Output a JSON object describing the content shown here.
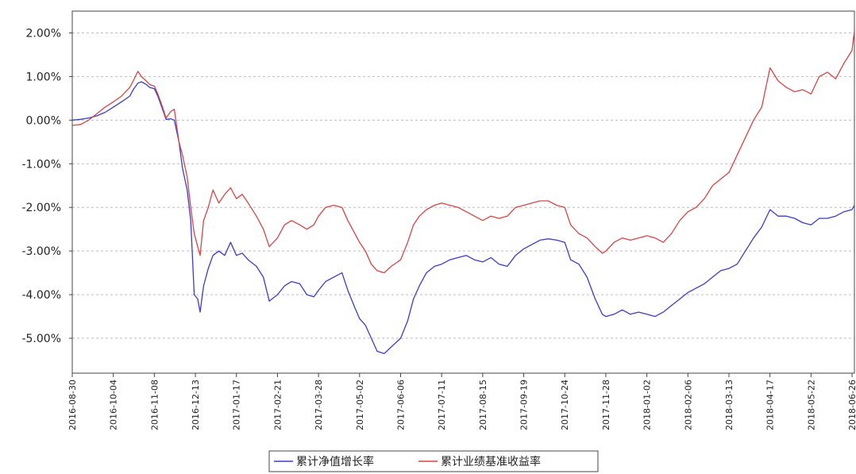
{
  "chart_data": {
    "type": "line",
    "title": "",
    "xlabel": "",
    "ylabel": "",
    "ylim": [
      -5.8,
      2.5
    ],
    "yticks": [
      {
        "value": 2,
        "label": "2.00%"
      },
      {
        "value": 1,
        "label": "1.00%"
      },
      {
        "value": 0,
        "label": "0.00%"
      },
      {
        "value": -1,
        "label": "-1.00%"
      },
      {
        "value": -2,
        "label": "-2.00%"
      },
      {
        "value": -3,
        "label": "-3.00%"
      },
      {
        "value": -4,
        "label": "-4.00%"
      },
      {
        "value": -5,
        "label": "-5.00%"
      }
    ],
    "x_range": [
      "2016-08-30",
      "2018-06-28"
    ],
    "xticks": [
      "2016-08-30",
      "2016-10-04",
      "2016-11-08",
      "2016-12-13",
      "2017-01-17",
      "2017-02-21",
      "2017-03-28",
      "2017-05-02",
      "2017-06-06",
      "2017-07-11",
      "2017-08-15",
      "2017-09-19",
      "2017-10-24",
      "2017-11-28",
      "2018-01-02",
      "2018-02-06",
      "2018-03-13",
      "2018-04-17",
      "2018-05-22",
      "2018-06-26"
    ],
    "grid": true,
    "legend_position": "bottom-center",
    "series": [
      {
        "name": "累计净值增长率",
        "color": "#3b3bcc",
        "points": [
          [
            "2016-08-30",
            0.0
          ],
          [
            "2016-09-06",
            0.02
          ],
          [
            "2016-09-13",
            0.05
          ],
          [
            "2016-09-20",
            0.1
          ],
          [
            "2016-09-27",
            0.18
          ],
          [
            "2016-10-04",
            0.3
          ],
          [
            "2016-10-11",
            0.42
          ],
          [
            "2016-10-18",
            0.55
          ],
          [
            "2016-10-21",
            0.7
          ],
          [
            "2016-10-25",
            0.85
          ],
          [
            "2016-10-28",
            0.88
          ],
          [
            "2016-11-01",
            0.82
          ],
          [
            "2016-11-04",
            0.75
          ],
          [
            "2016-11-08",
            0.72
          ],
          [
            "2016-11-11",
            0.55
          ],
          [
            "2016-11-15",
            0.25
          ],
          [
            "2016-11-18",
            0.02
          ],
          [
            "2016-11-22",
            0.03
          ],
          [
            "2016-11-25",
            0.0
          ],
          [
            "2016-11-29",
            -0.5
          ],
          [
            "2016-12-02",
            -1.1
          ],
          [
            "2016-12-06",
            -1.6
          ],
          [
            "2016-12-09",
            -2.3
          ],
          [
            "2016-12-12",
            -4.0
          ],
          [
            "2016-12-15",
            -4.1
          ],
          [
            "2016-12-17",
            -4.4
          ],
          [
            "2016-12-20",
            -3.8
          ],
          [
            "2016-12-24",
            -3.4
          ],
          [
            "2016-12-28",
            -3.1
          ],
          [
            "2017-01-02",
            -3.0
          ],
          [
            "2017-01-07",
            -3.1
          ],
          [
            "2017-01-12",
            -2.8
          ],
          [
            "2017-01-17",
            -3.1
          ],
          [
            "2017-01-22",
            -3.05
          ],
          [
            "2017-01-27",
            -3.2
          ],
          [
            "2017-02-03",
            -3.35
          ],
          [
            "2017-02-09",
            -3.6
          ],
          [
            "2017-02-14",
            -4.15
          ],
          [
            "2017-02-21",
            -4.0
          ],
          [
            "2017-02-27",
            -3.8
          ],
          [
            "2017-03-05",
            -3.7
          ],
          [
            "2017-03-12",
            -3.75
          ],
          [
            "2017-03-18",
            -4.0
          ],
          [
            "2017-03-24",
            -4.05
          ],
          [
            "2017-03-28",
            -3.9
          ],
          [
            "2017-04-03",
            -3.7
          ],
          [
            "2017-04-10",
            -3.6
          ],
          [
            "2017-04-17",
            -3.5
          ],
          [
            "2017-04-22",
            -3.9
          ],
          [
            "2017-04-28",
            -4.3
          ],
          [
            "2017-05-02",
            -4.55
          ],
          [
            "2017-05-07",
            -4.7
          ],
          [
            "2017-05-12",
            -5.0
          ],
          [
            "2017-05-17",
            -5.3
          ],
          [
            "2017-05-23",
            -5.35
          ],
          [
            "2017-05-29",
            -5.2
          ],
          [
            "2017-06-06",
            -5.0
          ],
          [
            "2017-06-12",
            -4.6
          ],
          [
            "2017-06-17",
            -4.1
          ],
          [
            "2017-06-22",
            -3.8
          ],
          [
            "2017-06-28",
            -3.5
          ],
          [
            "2017-07-05",
            -3.35
          ],
          [
            "2017-07-11",
            -3.3
          ],
          [
            "2017-07-18",
            -3.2
          ],
          [
            "2017-07-25",
            -3.15
          ],
          [
            "2017-08-01",
            -3.1
          ],
          [
            "2017-08-08",
            -3.2
          ],
          [
            "2017-08-15",
            -3.25
          ],
          [
            "2017-08-22",
            -3.15
          ],
          [
            "2017-08-29",
            -3.3
          ],
          [
            "2017-09-05",
            -3.35
          ],
          [
            "2017-09-12",
            -3.1
          ],
          [
            "2017-09-19",
            -2.95
          ],
          [
            "2017-09-26",
            -2.85
          ],
          [
            "2017-10-03",
            -2.75
          ],
          [
            "2017-10-10",
            -2.72
          ],
          [
            "2017-10-17",
            -2.75
          ],
          [
            "2017-10-24",
            -2.8
          ],
          [
            "2017-10-29",
            -3.2
          ],
          [
            "2017-11-05",
            -3.3
          ],
          [
            "2017-11-12",
            -3.6
          ],
          [
            "2017-11-19",
            -4.1
          ],
          [
            "2017-11-25",
            -4.45
          ],
          [
            "2017-11-28",
            -4.5
          ],
          [
            "2017-12-05",
            -4.45
          ],
          [
            "2017-12-12",
            -4.35
          ],
          [
            "2017-12-19",
            -4.45
          ],
          [
            "2017-12-26",
            -4.4
          ],
          [
            "2018-01-02",
            -4.45
          ],
          [
            "2018-01-09",
            -4.5
          ],
          [
            "2018-01-16",
            -4.4
          ],
          [
            "2018-01-23",
            -4.25
          ],
          [
            "2018-01-30",
            -4.1
          ],
          [
            "2018-02-06",
            -3.95
          ],
          [
            "2018-02-13",
            -3.85
          ],
          [
            "2018-02-20",
            -3.75
          ],
          [
            "2018-02-27",
            -3.6
          ],
          [
            "2018-03-06",
            -3.45
          ],
          [
            "2018-03-13",
            -3.4
          ],
          [
            "2018-03-20",
            -3.3
          ],
          [
            "2018-03-27",
            -3.0
          ],
          [
            "2018-04-03",
            -2.7
          ],
          [
            "2018-04-10",
            -2.45
          ],
          [
            "2018-04-17",
            -2.05
          ],
          [
            "2018-04-24",
            -2.2
          ],
          [
            "2018-05-01",
            -2.2
          ],
          [
            "2018-05-08",
            -2.25
          ],
          [
            "2018-05-15",
            -2.35
          ],
          [
            "2018-05-22",
            -2.4
          ],
          [
            "2018-05-29",
            -2.25
          ],
          [
            "2018-06-05",
            -2.25
          ],
          [
            "2018-06-12",
            -2.2
          ],
          [
            "2018-06-19",
            -2.1
          ],
          [
            "2018-06-26",
            -2.05
          ],
          [
            "2018-06-28",
            -1.95
          ]
        ]
      },
      {
        "name": "累计业绩基准收益率",
        "color": "#d94444",
        "points": [
          [
            "2016-08-30",
            -0.12
          ],
          [
            "2016-09-06",
            -0.1
          ],
          [
            "2016-09-13",
            0.0
          ],
          [
            "2016-09-20",
            0.15
          ],
          [
            "2016-09-27",
            0.3
          ],
          [
            "2016-10-04",
            0.42
          ],
          [
            "2016-10-11",
            0.55
          ],
          [
            "2016-10-18",
            0.75
          ],
          [
            "2016-10-21",
            0.9
          ],
          [
            "2016-10-25",
            1.12
          ],
          [
            "2016-10-28",
            1.0
          ],
          [
            "2016-11-01",
            0.9
          ],
          [
            "2016-11-04",
            0.82
          ],
          [
            "2016-11-08",
            0.78
          ],
          [
            "2016-11-11",
            0.6
          ],
          [
            "2016-11-15",
            0.3
          ],
          [
            "2016-11-18",
            0.05
          ],
          [
            "2016-11-22",
            0.2
          ],
          [
            "2016-11-25",
            0.25
          ],
          [
            "2016-11-29",
            -0.5
          ],
          [
            "2016-12-02",
            -0.8
          ],
          [
            "2016-12-06",
            -1.3
          ],
          [
            "2016-12-09",
            -2.0
          ],
          [
            "2016-12-12",
            -2.6
          ],
          [
            "2016-12-15",
            -2.9
          ],
          [
            "2016-12-17",
            -3.1
          ],
          [
            "2016-12-20",
            -2.3
          ],
          [
            "2016-12-24",
            -2.0
          ],
          [
            "2016-12-28",
            -1.6
          ],
          [
            "2017-01-02",
            -1.9
          ],
          [
            "2017-01-07",
            -1.7
          ],
          [
            "2017-01-12",
            -1.55
          ],
          [
            "2017-01-17",
            -1.8
          ],
          [
            "2017-01-22",
            -1.7
          ],
          [
            "2017-01-27",
            -1.9
          ],
          [
            "2017-02-03",
            -2.2
          ],
          [
            "2017-02-09",
            -2.5
          ],
          [
            "2017-02-14",
            -2.9
          ],
          [
            "2017-02-21",
            -2.7
          ],
          [
            "2017-02-27",
            -2.4
          ],
          [
            "2017-03-05",
            -2.3
          ],
          [
            "2017-03-12",
            -2.4
          ],
          [
            "2017-03-18",
            -2.5
          ],
          [
            "2017-03-24",
            -2.4
          ],
          [
            "2017-03-28",
            -2.2
          ],
          [
            "2017-04-03",
            -2.0
          ],
          [
            "2017-04-10",
            -1.95
          ],
          [
            "2017-04-17",
            -2.0
          ],
          [
            "2017-04-22",
            -2.3
          ],
          [
            "2017-04-28",
            -2.6
          ],
          [
            "2017-05-02",
            -2.8
          ],
          [
            "2017-05-07",
            -3.0
          ],
          [
            "2017-05-12",
            -3.3
          ],
          [
            "2017-05-17",
            -3.45
          ],
          [
            "2017-05-23",
            -3.5
          ],
          [
            "2017-05-29",
            -3.35
          ],
          [
            "2017-06-06",
            -3.2
          ],
          [
            "2017-06-12",
            -2.8
          ],
          [
            "2017-06-17",
            -2.4
          ],
          [
            "2017-06-22",
            -2.2
          ],
          [
            "2017-06-28",
            -2.05
          ],
          [
            "2017-07-05",
            -1.95
          ],
          [
            "2017-07-11",
            -1.9
          ],
          [
            "2017-07-18",
            -1.95
          ],
          [
            "2017-07-25",
            -2.0
          ],
          [
            "2017-08-01",
            -2.1
          ],
          [
            "2017-08-08",
            -2.2
          ],
          [
            "2017-08-15",
            -2.3
          ],
          [
            "2017-08-22",
            -2.2
          ],
          [
            "2017-08-29",
            -2.25
          ],
          [
            "2017-09-05",
            -2.2
          ],
          [
            "2017-09-12",
            -2.0
          ],
          [
            "2017-09-19",
            -1.95
          ],
          [
            "2017-09-26",
            -1.9
          ],
          [
            "2017-10-03",
            -1.85
          ],
          [
            "2017-10-10",
            -1.85
          ],
          [
            "2017-10-17",
            -1.95
          ],
          [
            "2017-10-24",
            -2.0
          ],
          [
            "2017-10-29",
            -2.4
          ],
          [
            "2017-11-05",
            -2.6
          ],
          [
            "2017-11-12",
            -2.7
          ],
          [
            "2017-11-19",
            -2.9
          ],
          [
            "2017-11-25",
            -3.05
          ],
          [
            "2017-11-28",
            -3.0
          ],
          [
            "2017-12-05",
            -2.8
          ],
          [
            "2017-12-12",
            -2.7
          ],
          [
            "2017-12-19",
            -2.75
          ],
          [
            "2017-12-26",
            -2.7
          ],
          [
            "2018-01-02",
            -2.65
          ],
          [
            "2018-01-09",
            -2.7
          ],
          [
            "2018-01-16",
            -2.8
          ],
          [
            "2018-01-23",
            -2.6
          ],
          [
            "2018-01-30",
            -2.3
          ],
          [
            "2018-02-06",
            -2.1
          ],
          [
            "2018-02-13",
            -2.0
          ],
          [
            "2018-02-20",
            -1.8
          ],
          [
            "2018-02-27",
            -1.5
          ],
          [
            "2018-03-06",
            -1.35
          ],
          [
            "2018-03-13",
            -1.2
          ],
          [
            "2018-03-20",
            -0.8
          ],
          [
            "2018-03-27",
            -0.4
          ],
          [
            "2018-04-03",
            0.0
          ],
          [
            "2018-04-10",
            0.3
          ],
          [
            "2018-04-17",
            1.2
          ],
          [
            "2018-04-24",
            0.9
          ],
          [
            "2018-05-01",
            0.75
          ],
          [
            "2018-05-08",
            0.65
          ],
          [
            "2018-05-15",
            0.7
          ],
          [
            "2018-05-22",
            0.6
          ],
          [
            "2018-05-29",
            1.0
          ],
          [
            "2018-06-05",
            1.1
          ],
          [
            "2018-06-12",
            0.95
          ],
          [
            "2018-06-19",
            1.3
          ],
          [
            "2018-06-26",
            1.6
          ],
          [
            "2018-06-28",
            2.05
          ]
        ]
      }
    ]
  }
}
